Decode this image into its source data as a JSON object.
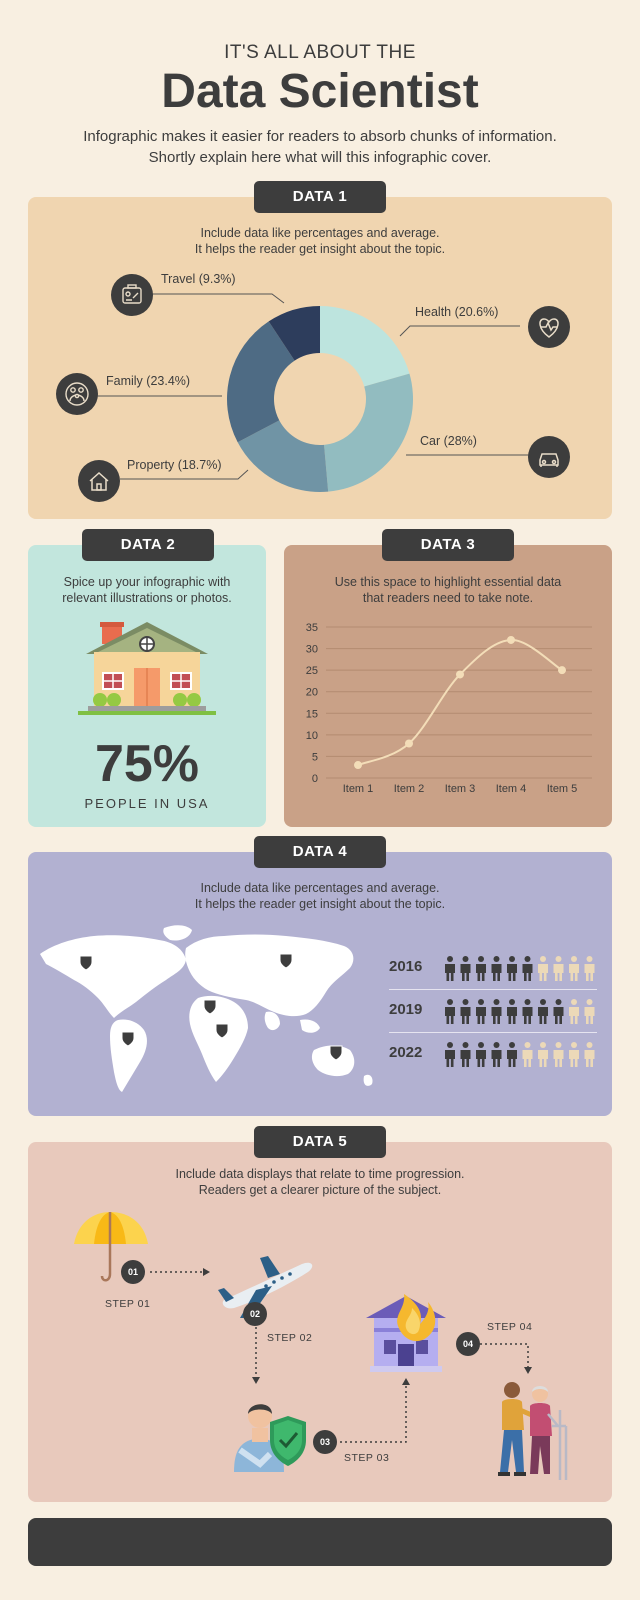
{
  "header": {
    "kicker": "IT'S ALL ABOUT THE",
    "title": "Data Scientist",
    "intro_line1": "Infographic makes it easier for readers to absorb chunks of information.",
    "intro_line2": "Shortly explain here what will this infographic cover."
  },
  "data1": {
    "pill": "DATA 1",
    "desc_line1": "Include data like percentages and average.",
    "desc_line2": "It helps the reader get insight about the topic.",
    "icons": [
      "travel-icon",
      "health-icon",
      "family-icon",
      "car-icon",
      "property-icon"
    ]
  },
  "data2": {
    "pill": "DATA 2",
    "desc_line1": "Spice up your infographic with",
    "desc_line2": "relevant illustrations or photos.",
    "stat": "75%",
    "stat_label": "PEOPLE IN USA"
  },
  "data3": {
    "pill": "DATA 3",
    "desc_line1": "Use this space to highlight essential data",
    "desc_line2": "that readers need to take note."
  },
  "data4": {
    "pill": "DATA 4",
    "desc_line1": "Include data like percentages and average.",
    "desc_line2": "It helps the reader get insight about the topic."
  },
  "data5": {
    "pill": "DATA 5",
    "desc_line1": "Include data displays that relate to time progression.",
    "desc_line2": "Readers get a clearer picture of the subject.",
    "steps": [
      {
        "num": "01",
        "label": "STEP 01",
        "icon": "umbrella-icon"
      },
      {
        "num": "02",
        "label": "STEP 02",
        "icon": "airplane-icon"
      },
      {
        "num": "03",
        "label": "STEP 03",
        "icon": "insurance-person-icon"
      },
      {
        "num": "04",
        "label": "STEP 04",
        "icon": "elderly-care-icon"
      }
    ]
  },
  "colors": {
    "dark": "#3d3d3d",
    "page_bg": "#f8efe1",
    "data1_bg": "#f0d5b0",
    "data2_bg": "#c2e6dd",
    "data3_bg": "#c9a187",
    "data4_bg": "#b2b1d1",
    "data5_bg": "#e8c9bc",
    "person_light": "#ecd9b8"
  },
  "chart_data": [
    {
      "type": "pie",
      "categories": [
        "Health",
        "Car",
        "Property",
        "Family",
        "Travel"
      ],
      "values": [
        20.6,
        28,
        18.7,
        23.4,
        9.3
      ],
      "labels": [
        "Health (20.6%)",
        "Car (28%)",
        "Property (18.7%)",
        "Family (23.4%)",
        "Travel (9.3%)"
      ],
      "colors": [
        "#bde4de",
        "#92bcc0",
        "#7094a5",
        "#4e6b84",
        "#2d3d5c"
      ]
    },
    {
      "type": "line",
      "categories": [
        "Item 1",
        "Item 2",
        "Item 3",
        "Item 4",
        "Item 5"
      ],
      "values": [
        3,
        8,
        24,
        32,
        25
      ],
      "y_ticks": [
        0,
        5,
        10,
        15,
        20,
        25,
        30,
        35
      ],
      "ylim": [
        0,
        35
      ],
      "grid": true,
      "color": "#f3ddb8"
    },
    {
      "type": "pictogram",
      "categories": [
        "2016",
        "2019",
        "2022"
      ],
      "values": [
        6,
        8,
        5
      ],
      "total": 10
    }
  ]
}
